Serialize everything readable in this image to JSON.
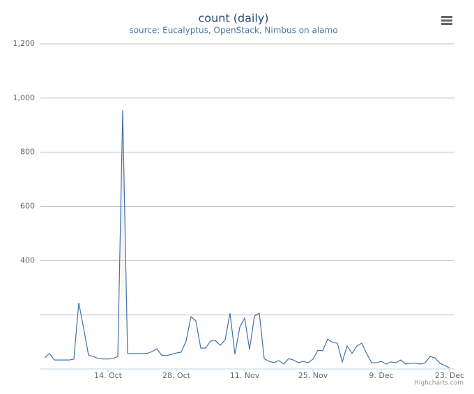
{
  "chart_data": {
    "type": "area",
    "title": "count (daily)",
    "subtitle": "source: Eucalyptus, OpenStack, Nimbus on alamo",
    "credits": "Highcharts.com",
    "color": "#4572a7",
    "x": [
      "1. Oct",
      "2. Oct",
      "3. Oct",
      "4. Oct",
      "5. Oct",
      "6. Oct",
      "7. Oct",
      "8. Oct",
      "9. Oct",
      "10. Oct",
      "11. Oct",
      "12. Oct",
      "13. Oct",
      "14. Oct",
      "15. Oct",
      "16. Oct",
      "17. Oct",
      "18. Oct",
      "19. Oct",
      "20. Oct",
      "21. Oct",
      "22. Oct",
      "23. Oct",
      "24. Oct",
      "25. Oct",
      "26. Oct",
      "27. Oct",
      "28. Oct",
      "29. Oct",
      "30. Oct",
      "31. Oct",
      "1. Nov",
      "2. Nov",
      "3. Nov",
      "4. Nov",
      "5. Nov",
      "6. Nov",
      "7. Nov",
      "8. Nov",
      "9. Nov",
      "10. Nov",
      "11. Nov",
      "12. Nov",
      "13. Nov",
      "14. Nov",
      "15. Nov",
      "16. Nov",
      "17. Nov",
      "18. Nov",
      "19. Nov",
      "20. Nov",
      "21. Nov",
      "22. Nov",
      "23. Nov",
      "24. Nov",
      "25. Nov",
      "26. Nov",
      "27. Nov",
      "28. Nov",
      "29. Nov",
      "30. Nov",
      "1. Dec",
      "2. Dec",
      "3. Dec",
      "4. Dec",
      "5. Dec",
      "6. Dec",
      "7. Dec",
      "8. Dec",
      "9. Dec",
      "10. Dec",
      "11. Dec",
      "12. Dec",
      "13. Dec",
      "14. Dec",
      "15. Dec",
      "16. Dec",
      "17. Dec",
      "18. Dec",
      "19. Dec",
      "20. Dec",
      "21. Dec",
      "22. Dec",
      "23. Dec"
    ],
    "values": [
      41,
      57,
      33,
      33,
      33,
      33,
      36,
      244,
      150,
      51,
      46,
      38,
      37,
      37,
      38,
      46,
      956,
      57,
      57,
      57,
      57,
      57,
      64,
      74,
      51,
      49,
      54,
      59,
      62,
      103,
      193,
      177,
      77,
      77,
      103,
      105,
      87,
      108,
      206,
      54,
      154,
      188,
      72,
      195,
      206,
      38,
      28,
      23,
      31,
      18,
      38,
      33,
      23,
      28,
      23,
      36,
      69,
      67,
      110,
      98,
      95,
      26,
      85,
      57,
      85,
      95,
      57,
      23,
      23,
      28,
      18,
      26,
      23,
      33,
      18,
      21,
      21,
      18,
      23,
      46,
      41,
      21,
      13,
      3
    ],
    "xticks": [
      "14. Oct",
      "28. Oct",
      "11. Nov",
      "25. Nov",
      "9. Dec",
      "23. Dec"
    ],
    "ylim": [
      0,
      1200
    ],
    "yticks": [
      {
        "value": 0,
        "label": null
      },
      {
        "value": 200,
        "label": null
      },
      {
        "value": 400,
        "label": "400"
      },
      {
        "value": 600,
        "label": "600"
      },
      {
        "value": 800,
        "label": "800"
      },
      {
        "value": 1000,
        "label": "1,000"
      },
      {
        "value": 1200,
        "label": "1,200"
      }
    ],
    "grid": true
  }
}
